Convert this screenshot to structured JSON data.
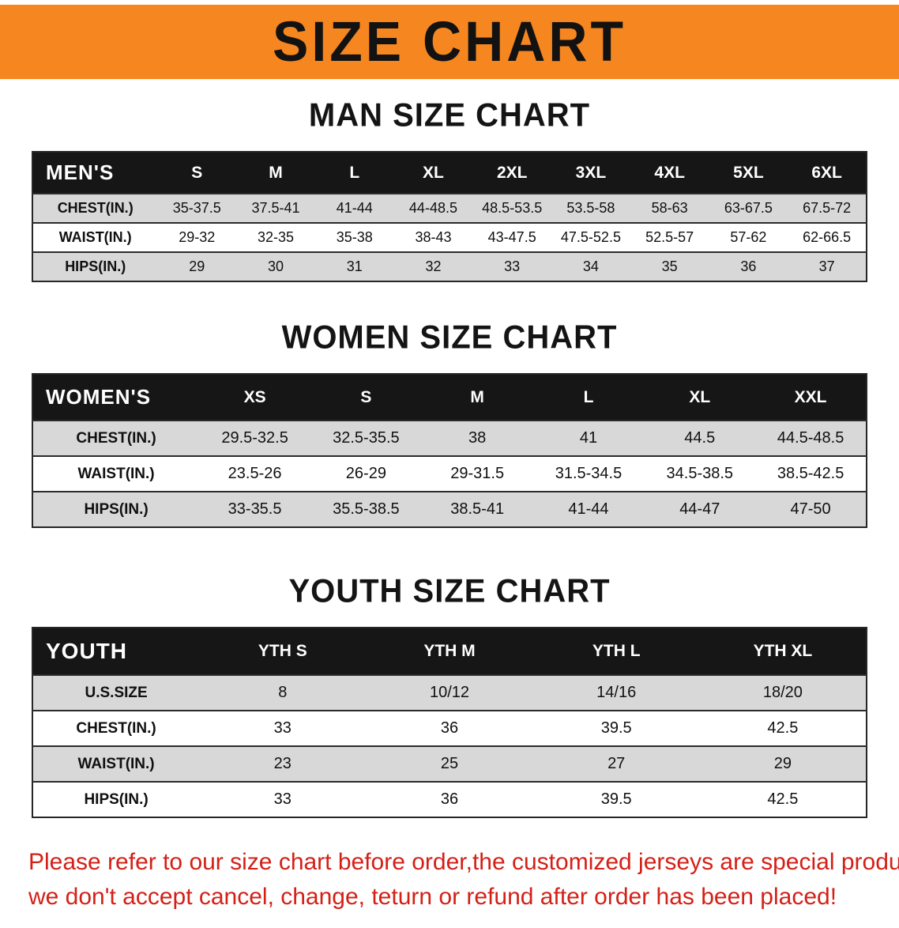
{
  "banner": {
    "title": "SIZE CHART",
    "bg_color": "#f6861f"
  },
  "colors": {
    "header_bar": "#161616",
    "stripe_gray": "#d8d8d8",
    "disclaimer_red": "#d32017"
  },
  "sections": [
    {
      "heading": "MAN SIZE CHART",
      "table": {
        "label": "MEN'S",
        "columns": [
          "S",
          "M",
          "L",
          "XL",
          "2XL",
          "3XL",
          "4XL",
          "5XL",
          "6XL"
        ],
        "rows": [
          {
            "label": "CHEST(IN.)",
            "values": [
              "35-37.5",
              "37.5-41",
              "41-44",
              "44-48.5",
              "48.5-53.5",
              "53.5-58",
              "58-63",
              "63-67.5",
              "67.5-72"
            ]
          },
          {
            "label": "WAIST(IN.)",
            "values": [
              "29-32",
              "32-35",
              "35-38",
              "38-43",
              "43-47.5",
              "47.5-52.5",
              "52.5-57",
              "57-62",
              "62-66.5"
            ]
          },
          {
            "label": "HIPS(IN.)",
            "values": [
              "29",
              "30",
              "31",
              "32",
              "33",
              "34",
              "35",
              "36",
              "37"
            ]
          }
        ]
      }
    },
    {
      "heading": "WOMEN SIZE CHART",
      "table": {
        "label": "WOMEN'S",
        "columns": [
          "XS",
          "S",
          "M",
          "L",
          "XL",
          "XXL"
        ],
        "rows": [
          {
            "label": "CHEST(IN.)",
            "values": [
              "29.5-32.5",
              "32.5-35.5",
              "38",
              "41",
              "44.5",
              "44.5-48.5"
            ]
          },
          {
            "label": "WAIST(IN.)",
            "values": [
              "23.5-26",
              "26-29",
              "29-31.5",
              "31.5-34.5",
              "34.5-38.5",
              "38.5-42.5"
            ]
          },
          {
            "label": "HIPS(IN.)",
            "values": [
              "33-35.5",
              "35.5-38.5",
              "38.5-41",
              "41-44",
              "44-47",
              "47-50"
            ]
          }
        ]
      }
    },
    {
      "heading": "YOUTH SIZE CHART",
      "table": {
        "label": "YOUTH",
        "columns": [
          "YTH S",
          "YTH M",
          "YTH L",
          "YTH XL"
        ],
        "rows": [
          {
            "label": "U.S.SIZE",
            "values": [
              "8",
              "10/12",
              "14/16",
              "18/20"
            ]
          },
          {
            "label": "CHEST(IN.)",
            "values": [
              "33",
              "36",
              "39.5",
              "42.5"
            ]
          },
          {
            "label": "WAIST(IN.)",
            "values": [
              "23",
              "25",
              "27",
              "29"
            ]
          },
          {
            "label": "HIPS(IN.)",
            "values": [
              "33",
              "36",
              "39.5",
              "42.5"
            ]
          }
        ]
      }
    }
  ],
  "disclaimer": {
    "line1": "Please refer to our size chart before order,the customized jerseys are special products,",
    "line2": "we don't accept cancel, change, teturn or refund after order has been placed!"
  }
}
